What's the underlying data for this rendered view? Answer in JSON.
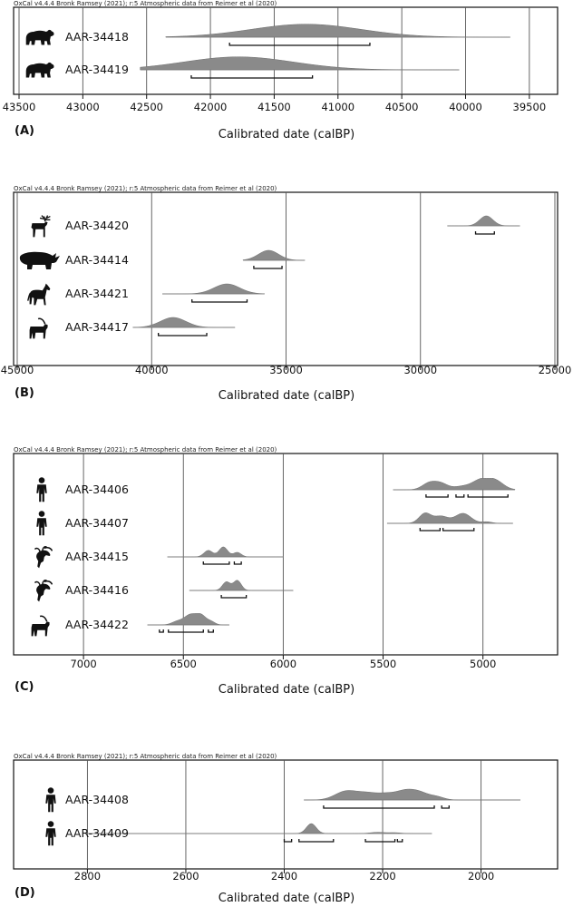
{
  "chart_data": [
    {
      "panel": "(A)",
      "type": "area",
      "header": "OxCal v4.4.4 Bronk Ramsey (2021); r:5 Atmospheric data from Reimer et al (2020)",
      "xlabel": "Calibrated date (calBP)",
      "xlim": [
        43500,
        39300
      ],
      "ticks": [
        43500,
        43000,
        42500,
        42000,
        41500,
        41000,
        40500,
        40000,
        39500
      ],
      "series": [
        {
          "name": "AAR-34418",
          "animal": "bear-icon",
          "range": [
            42350,
            39650
          ],
          "peaks": [
            {
              "center": 41250,
              "width": 430,
              "height": 1.0
            }
          ],
          "hpd": [
            [
              41850,
              40750
            ]
          ]
        },
        {
          "name": "AAR-34419",
          "animal": "bear-icon",
          "range": [
            42550,
            40050
          ],
          "peaks": [
            {
              "center": 41780,
              "width": 430,
              "height": 1.0
            }
          ],
          "hpd": [
            [
              42150,
              41200
            ]
          ]
        }
      ]
    },
    {
      "panel": "(B)",
      "type": "area",
      "header": "OxCal v4.4.4 Bronk Ramsey (2021); r:5 Atmospheric data from Reimer et al (2020)",
      "xlabel": "Calibrated date (calBP)",
      "xlim": [
        45000,
        25000
      ],
      "ticks": [
        45000,
        40000,
        35000,
        30000,
        25000
      ],
      "series": [
        {
          "name": "AAR-34420",
          "animal": "reindeer-icon",
          "range": [
            29000,
            26300
          ],
          "peaks": [
            {
              "center": 27550,
              "width": 250,
              "height": 1.0
            }
          ],
          "hpd": [
            [
              27950,
              27250
            ]
          ]
        },
        {
          "name": "AAR-34414",
          "animal": "rhinoceros-icon",
          "range": [
            36600,
            34300
          ],
          "peaks": [
            {
              "center": 35650,
              "width": 380,
              "height": 1.0
            }
          ],
          "hpd": [
            [
              36200,
              35150
            ]
          ]
        },
        {
          "name": "AAR-34421",
          "animal": "horse-icon",
          "range": [
            39600,
            35800
          ],
          "peaks": [
            {
              "center": 37200,
              "width": 480,
              "height": 1.0
            }
          ],
          "hpd": [
            [
              38500,
              36450
            ]
          ]
        },
        {
          "name": "AAR-34417",
          "animal": "ibex-icon",
          "range": [
            40700,
            36900
          ],
          "peaks": [
            {
              "center": 39200,
              "width": 480,
              "height": 1.0
            }
          ],
          "hpd": [
            [
              39750,
              37950
            ]
          ]
        }
      ]
    },
    {
      "panel": "(C)",
      "type": "area",
      "header": "OxCal v4.4.4 Bronk Ramsey (2021); r:5 Atmospheric data from Reimer et al (2020)",
      "xlabel": "Calibrated date (calBP)",
      "xlim": [
        7350,
        4640
      ],
      "ticks": [
        7000,
        6500,
        6000,
        5500,
        5000
      ],
      "series": [
        {
          "name": "AAR-34406",
          "animal": "human-icon",
          "range": [
            5450,
            4840
          ],
          "peaks": [
            {
              "center": 5270,
              "width": 35,
              "height": 0.65
            },
            {
              "center": 5210,
              "width": 35,
              "height": 0.6
            },
            {
              "center": 5110,
              "width": 40,
              "height": 0.3
            },
            {
              "center": 5010,
              "width": 45,
              "height": 1.0
            },
            {
              "center": 4935,
              "width": 40,
              "height": 0.8
            }
          ],
          "hpd": [
            [
              5285,
              5175
            ],
            [
              5135,
              5095
            ],
            [
              5075,
              4875
            ]
          ]
        },
        {
          "name": "AAR-34407",
          "animal": "human-icon",
          "range": [
            5480,
            4850
          ],
          "peaks": [
            {
              "center": 5290,
              "width": 30,
              "height": 1.0
            },
            {
              "center": 5210,
              "width": 35,
              "height": 0.7
            },
            {
              "center": 5100,
              "width": 40,
              "height": 1.0
            },
            {
              "center": 4980,
              "width": 25,
              "height": 0.15
            }
          ],
          "hpd": [
            [
              5315,
              5215
            ],
            [
              5200,
              5045
            ]
          ]
        },
        {
          "name": "AAR-34415",
          "animal": "chamois-icon",
          "range": [
            6580,
            6000
          ],
          "peaks": [
            {
              "center": 6375,
              "width": 22,
              "height": 0.65
            },
            {
              "center": 6300,
              "width": 22,
              "height": 1.0
            },
            {
              "center": 6230,
              "width": 20,
              "height": 0.45
            }
          ],
          "hpd": [
            [
              6400,
              6270
            ],
            [
              6245,
              6210
            ]
          ]
        },
        {
          "name": "AAR-34416",
          "animal": "chamois-icon",
          "range": [
            6470,
            5950
          ],
          "peaks": [
            {
              "center": 6285,
              "width": 20,
              "height": 0.85
            },
            {
              "center": 6230,
              "width": 20,
              "height": 1.0
            }
          ],
          "hpd": [
            [
              6310,
              6185
            ]
          ]
        },
        {
          "name": "AAR-34422",
          "animal": "ibex-icon",
          "range": [
            6680,
            6270
          ],
          "peaks": [
            {
              "center": 6530,
              "width": 28,
              "height": 0.35
            },
            {
              "center": 6465,
              "width": 30,
              "height": 1.0
            },
            {
              "center": 6410,
              "width": 25,
              "height": 0.9
            },
            {
              "center": 6360,
              "width": 20,
              "height": 0.3
            }
          ],
          "hpd": [
            [
              6620,
              6600
            ],
            [
              6575,
              6400
            ],
            [
              6375,
              6350
            ]
          ]
        }
      ]
    },
    {
      "panel": "(D)",
      "type": "area",
      "header": "OxCal v4.4.4 Bronk Ramsey (2021); r:5 Atmospheric data from Reimer et al (2020)",
      "xlabel": "Calibrated date (calBP)",
      "xlim": [
        2950,
        1850
      ],
      "ticks": [
        2800,
        2600,
        2400,
        2200,
        2000
      ],
      "series": [
        {
          "name": "AAR-34408",
          "animal": "human-icon",
          "range": [
            2360,
            1920
          ],
          "peaks": [
            {
              "center": 2275,
              "width": 22,
              "height": 0.85
            },
            {
              "center": 2230,
              "width": 22,
              "height": 0.65
            },
            {
              "center": 2190,
              "width": 18,
              "height": 0.5
            },
            {
              "center": 2155,
              "width": 18,
              "height": 0.8
            },
            {
              "center": 2125,
              "width": 18,
              "height": 0.7
            },
            {
              "center": 2090,
              "width": 15,
              "height": 0.3
            }
          ],
          "hpd": [
            [
              2320,
              2095
            ],
            [
              2080,
              2065
            ]
          ]
        },
        {
          "name": "AAR-34409",
          "animal": "human-icon",
          "range": [
            2800,
            2100
          ],
          "peaks": [
            {
              "center": 2345,
              "width": 10,
              "height": 1.0
            },
            {
              "center": 2210,
              "width": 15,
              "height": 0.12
            },
            {
              "center": 2175,
              "width": 12,
              "height": 0.08
            }
          ],
          "hpd": [
            [
              2400,
              2385
            ],
            [
              2370,
              2300
            ],
            [
              2235,
              2175
            ],
            [
              2170,
              2160
            ]
          ]
        }
      ]
    }
  ]
}
